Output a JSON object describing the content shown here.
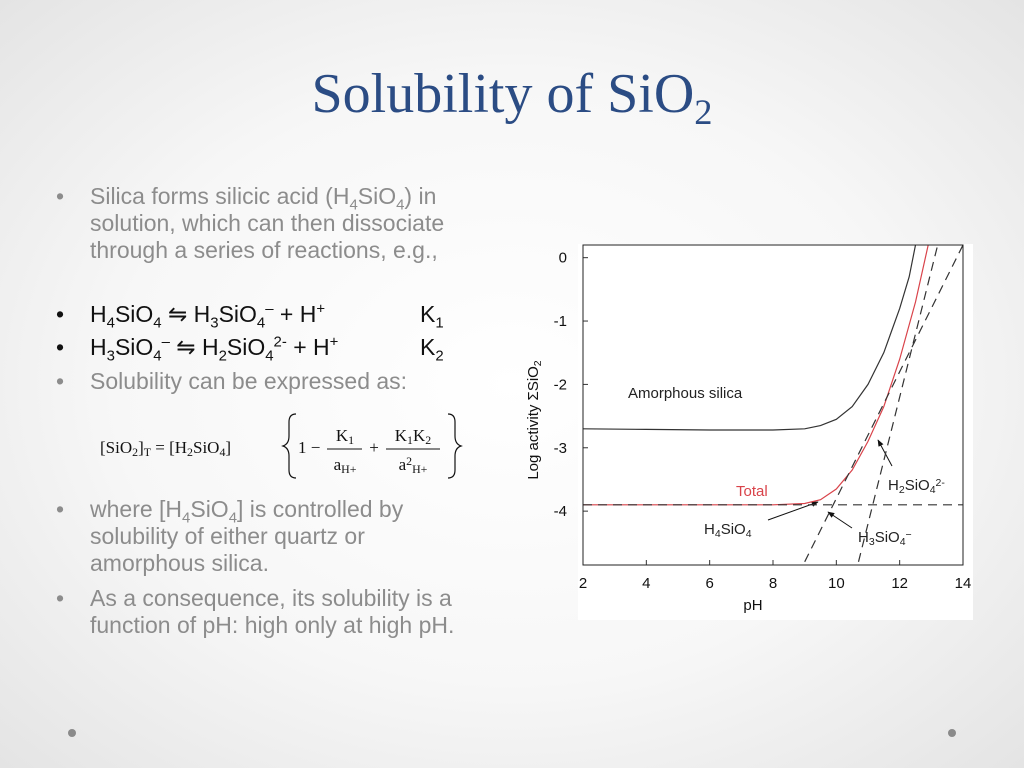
{
  "title": [
    {
      "text": "Solubility of SiO"
    },
    {
      "text": "2",
      "sub": true
    }
  ],
  "bullets": [
    {
      "color": "#8c8c8c",
      "top": 183,
      "text": [
        {
          "text": "Silica forms silicic acid (H"
        },
        {
          "text": "4",
          "sub": true
        },
        {
          "text": "SiO"
        },
        {
          "text": "4",
          "sub": true
        },
        {
          "text": ") in solution, which can then dissociate through a series of reactions, e.g.,"
        }
      ]
    },
    {
      "color": "#111111",
      "top": 301,
      "text": [
        {
          "text": "H"
        },
        {
          "text": "4",
          "sub": true
        },
        {
          "text": "SiO"
        },
        {
          "text": "4",
          "sub": true
        },
        {
          "text": " ⇋ H"
        },
        {
          "text": "3",
          "sub": true
        },
        {
          "text": "SiO"
        },
        {
          "text": "4",
          "sub": true
        },
        {
          "text": "–",
          "sup": true
        },
        {
          "text": " + H"
        },
        {
          "text": "+",
          "sup": true
        }
      ],
      "tail": [
        {
          "text": "K"
        },
        {
          "text": "1",
          "sub": true
        }
      ]
    },
    {
      "color": "#111111",
      "top": 334,
      "text": [
        {
          "text": "H"
        },
        {
          "text": "3",
          "sub": true
        },
        {
          "text": "SiO"
        },
        {
          "text": "4",
          "sub": true
        },
        {
          "text": "–",
          "sup": true
        },
        {
          "text": " ⇋ H"
        },
        {
          "text": "2",
          "sub": true
        },
        {
          "text": "SiO"
        },
        {
          "text": "4",
          "sub": true
        },
        {
          "text": "2-",
          "sup": true
        },
        {
          "text": " + H"
        },
        {
          "text": "+",
          "sup": true
        }
      ],
      "tail": [
        {
          "text": "K"
        },
        {
          "text": "2",
          "sub": true
        }
      ]
    },
    {
      "color": "#8c8c8c",
      "top": 368,
      "text": [
        {
          "text": "Solubility can be expressed as:"
        }
      ]
    },
    {
      "color": "#8c8c8c",
      "top": 496,
      "text": [
        {
          "text": "where [H"
        },
        {
          "text": "4",
          "sub": true
        },
        {
          "text": "SiO"
        },
        {
          "text": "4",
          "sub": true
        },
        {
          "text": "] is controlled by solubility of either quartz or amorphous silica."
        }
      ]
    },
    {
      "color": "#8c8c8c",
      "top": 585,
      "text": [
        {
          "text": "As a consequence, its solubility is a function of pH: high only at high pH."
        }
      ]
    }
  ],
  "formula": {
    "lhs": [
      {
        "text": "[SiO"
      },
      {
        "text": "2",
        "sub": true
      },
      {
        "text": "]"
      },
      {
        "text": "T",
        "sub": true
      },
      {
        "text": " = [H"
      },
      {
        "text": "2",
        "sub": true
      },
      {
        "text": "SiO"
      },
      {
        "text": "4",
        "sub": true
      },
      {
        "text": "]"
      }
    ],
    "lead": [
      {
        "text": "1 −"
      }
    ],
    "num1": [
      {
        "text": "K"
      },
      {
        "text": "1",
        "sub": true
      }
    ],
    "den1": [
      {
        "text": "a"
      },
      {
        "text": "H+",
        "sub": true
      }
    ],
    "plus": [
      {
        "text": "+"
      }
    ],
    "num2": [
      {
        "text": "K"
      },
      {
        "text": "1",
        "sub": true
      },
      {
        "text": "K"
      },
      {
        "text": "2",
        "sub": true
      }
    ],
    "den2": [
      {
        "text": "a"
      },
      {
        "text": "2",
        "sup": true
      },
      {
        "text": "H+",
        "sub": true
      }
    ]
  },
  "chart_data": {
    "type": "line",
    "xlabel": "pH",
    "ylabel": [
      {
        "text": "Log activity ΣSiO"
      },
      {
        "text": "2",
        "sub": true
      }
    ],
    "xlim": [
      2,
      14
    ],
    "xticks": [
      2,
      4,
      6,
      8,
      10,
      12,
      14
    ],
    "ylim": [
      -4.85,
      0.2
    ],
    "yticks": [
      0,
      -1,
      -2,
      -3,
      -4
    ],
    "series": [
      {
        "color": "#333333",
        "dash": false,
        "x": [
          2,
          4,
          6,
          8,
          9,
          9.5,
          10,
          10.5,
          11,
          11.5,
          12,
          12.3,
          12.5
        ],
        "values": [
          -2.7,
          -2.71,
          -2.72,
          -2.72,
          -2.7,
          -2.65,
          -2.55,
          -2.35,
          -2.0,
          -1.5,
          -0.8,
          -0.3,
          0.2
        ]
      },
      {
        "color": "#d9434a",
        "dash": false,
        "x": [
          2,
          8,
          9,
          9.5,
          10,
          10.5,
          11,
          11.5,
          12,
          12.5,
          12.9
        ],
        "values": [
          -3.9,
          -3.9,
          -3.88,
          -3.82,
          -3.65,
          -3.35,
          -2.9,
          -2.35,
          -1.6,
          -0.7,
          0.2
        ]
      },
      {
        "color": "#333333",
        "dash": true,
        "x": [
          2,
          14
        ],
        "values": [
          -3.9,
          -3.9
        ]
      },
      {
        "color": "#333333",
        "dash": true,
        "x": [
          9,
          14
        ],
        "values": [
          -4.8,
          0.2
        ]
      },
      {
        "color": "#333333",
        "dash": true,
        "x": [
          10.7,
          13.2
        ],
        "values": [
          -4.8,
          0.2
        ]
      }
    ],
    "annotations": [
      {
        "color": "#222222",
        "text": [
          {
            "text": "Amorphous silica"
          }
        ]
      },
      {
        "color": "#d9434a",
        "text": [
          {
            "text": "Total"
          }
        ]
      },
      {
        "color": "#222222",
        "text": [
          {
            "text": "H"
          },
          {
            "text": "4",
            "sub": true
          },
          {
            "text": "SiO"
          },
          {
            "text": "4",
            "sub": true
          }
        ]
      },
      {
        "color": "#222222",
        "text": [
          {
            "text": "H"
          },
          {
            "text": "3",
            "sub": true
          },
          {
            "text": "SiO"
          },
          {
            "text": "4",
            "sub": true
          },
          {
            "text": "−",
            "sup": true
          }
        ]
      },
      {
        "color": "#222222",
        "text": [
          {
            "text": "H"
          },
          {
            "text": "2",
            "sub": true
          },
          {
            "text": "SiO"
          },
          {
            "text": "4",
            "sub": true
          },
          {
            "text": "2-",
            "sup": true
          }
        ]
      }
    ]
  }
}
